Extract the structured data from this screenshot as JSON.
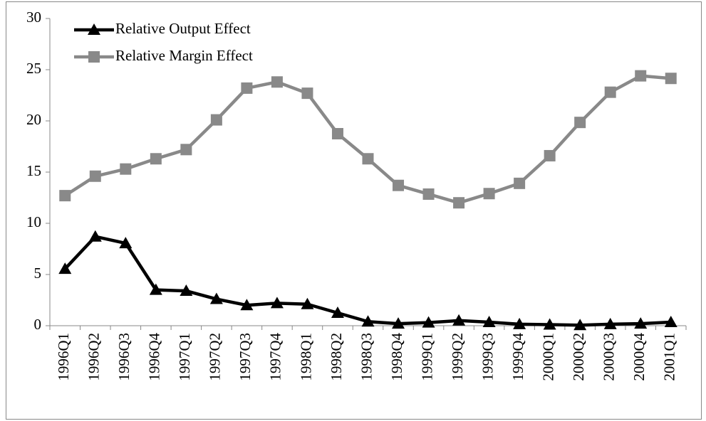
{
  "chart_data": {
    "type": "line",
    "categories": [
      "1996Q1",
      "1996Q2",
      "1996Q3",
      "1996Q4",
      "1997Q1",
      "1997Q2",
      "1997Q3",
      "1997Q4",
      "1998Q1",
      "1998Q2",
      "1998Q3",
      "1998Q4",
      "1999Q1",
      "1999Q2",
      "1999Q3",
      "1999Q4",
      "2000Q1",
      "2000Q2",
      "2000Q3",
      "2000Q4",
      "2001Q1"
    ],
    "series": [
      {
        "name": "Relative Output Effect",
        "color": "#000000",
        "marker": "triangle",
        "values": [
          5.55,
          8.7,
          8.05,
          3.5,
          3.4,
          2.6,
          2.0,
          2.2,
          2.1,
          1.25,
          0.4,
          0.2,
          0.3,
          0.5,
          0.35,
          0.15,
          0.1,
          0.05,
          0.15,
          0.2,
          0.35
        ]
      },
      {
        "name": "Relative Margin Effect",
        "color": "#898989",
        "marker": "square",
        "values": [
          12.7,
          14.6,
          15.3,
          16.3,
          17.2,
          20.1,
          23.2,
          23.8,
          22.7,
          18.75,
          16.3,
          13.7,
          12.85,
          12.0,
          12.9,
          13.9,
          16.6,
          19.85,
          22.8,
          24.4,
          24.15
        ]
      }
    ],
    "ylim": [
      0,
      30
    ],
    "yticks": [
      0,
      5,
      10,
      15,
      20,
      25,
      30
    ],
    "grid": false,
    "legend": "upper left"
  }
}
